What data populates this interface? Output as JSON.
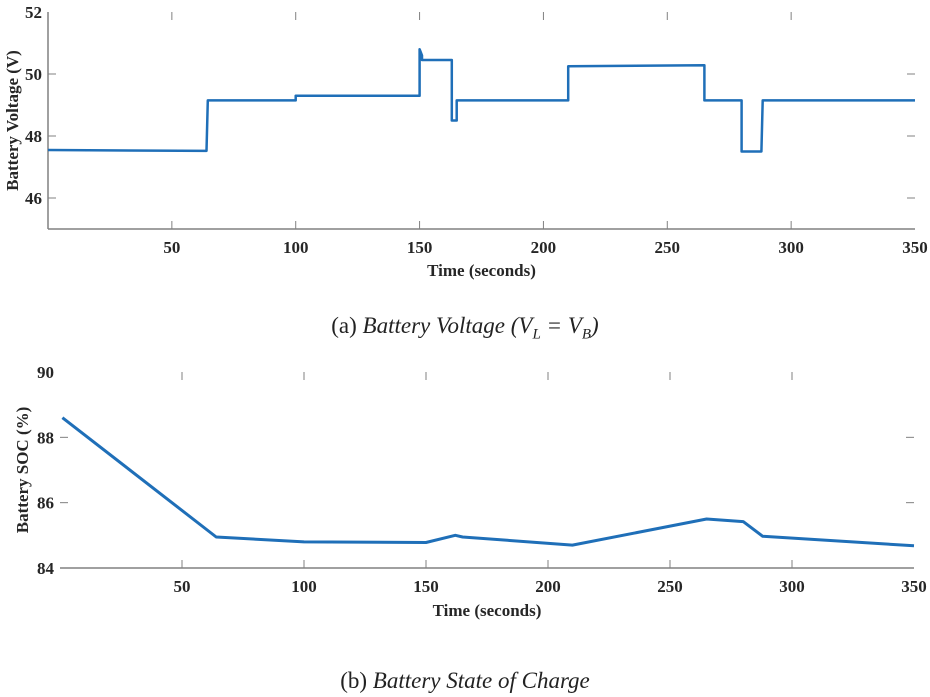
{
  "colors": {
    "line": "#1f6fb8",
    "axis": "#808080",
    "text": "#262626"
  },
  "captions": {
    "a_prefix": "(a)",
    "a_title": "Battery Voltage",
    "a_math_open": "(V",
    "a_math_sub1": "L",
    "a_math_eq": " = V",
    "a_math_sub2": "B",
    "a_math_close": ")",
    "b_prefix": "(b)",
    "b_title": "Battery State of Charge"
  },
  "chart_data": [
    {
      "type": "line",
      "xlabel": "Time (seconds)",
      "ylabel": "Battery Voltage (V)",
      "xlim": [
        0,
        350
      ],
      "ylim": [
        45,
        52
      ],
      "xticks": [
        50,
        100,
        150,
        200,
        250,
        300,
        350
      ],
      "yticks": [
        46,
        48,
        50,
        52
      ],
      "grid": false,
      "series": [
        {
          "x": [
            0,
            64,
            64.5,
            100,
            100,
            150,
            150,
            151,
            151,
            163,
            163,
            165,
            165,
            210,
            210,
            265,
            265,
            280,
            280,
            288,
            288.5,
            350
          ],
          "y": [
            47.55,
            47.52,
            49.15,
            49.15,
            49.3,
            49.3,
            50.8,
            50.6,
            50.45,
            50.45,
            48.5,
            48.5,
            49.15,
            49.15,
            50.25,
            50.28,
            49.15,
            49.15,
            47.5,
            47.5,
            49.15,
            49.15
          ]
        }
      ]
    },
    {
      "type": "line",
      "xlabel": "Time (seconds)",
      "ylabel": "Battery SOC (%)",
      "xlim": [
        0,
        350
      ],
      "ylim": [
        84,
        90
      ],
      "xticks": [
        50,
        100,
        150,
        200,
        250,
        300,
        350
      ],
      "yticks": [
        84,
        86,
        88,
        90
      ],
      "grid": false,
      "series": [
        {
          "x": [
            1,
            64,
            100,
            150,
            162,
            165,
            210,
            265,
            280,
            288,
            350
          ],
          "y": [
            88.6,
            84.95,
            84.8,
            84.78,
            85.0,
            84.95,
            84.7,
            85.5,
            85.42,
            84.97,
            84.68
          ]
        }
      ]
    }
  ]
}
